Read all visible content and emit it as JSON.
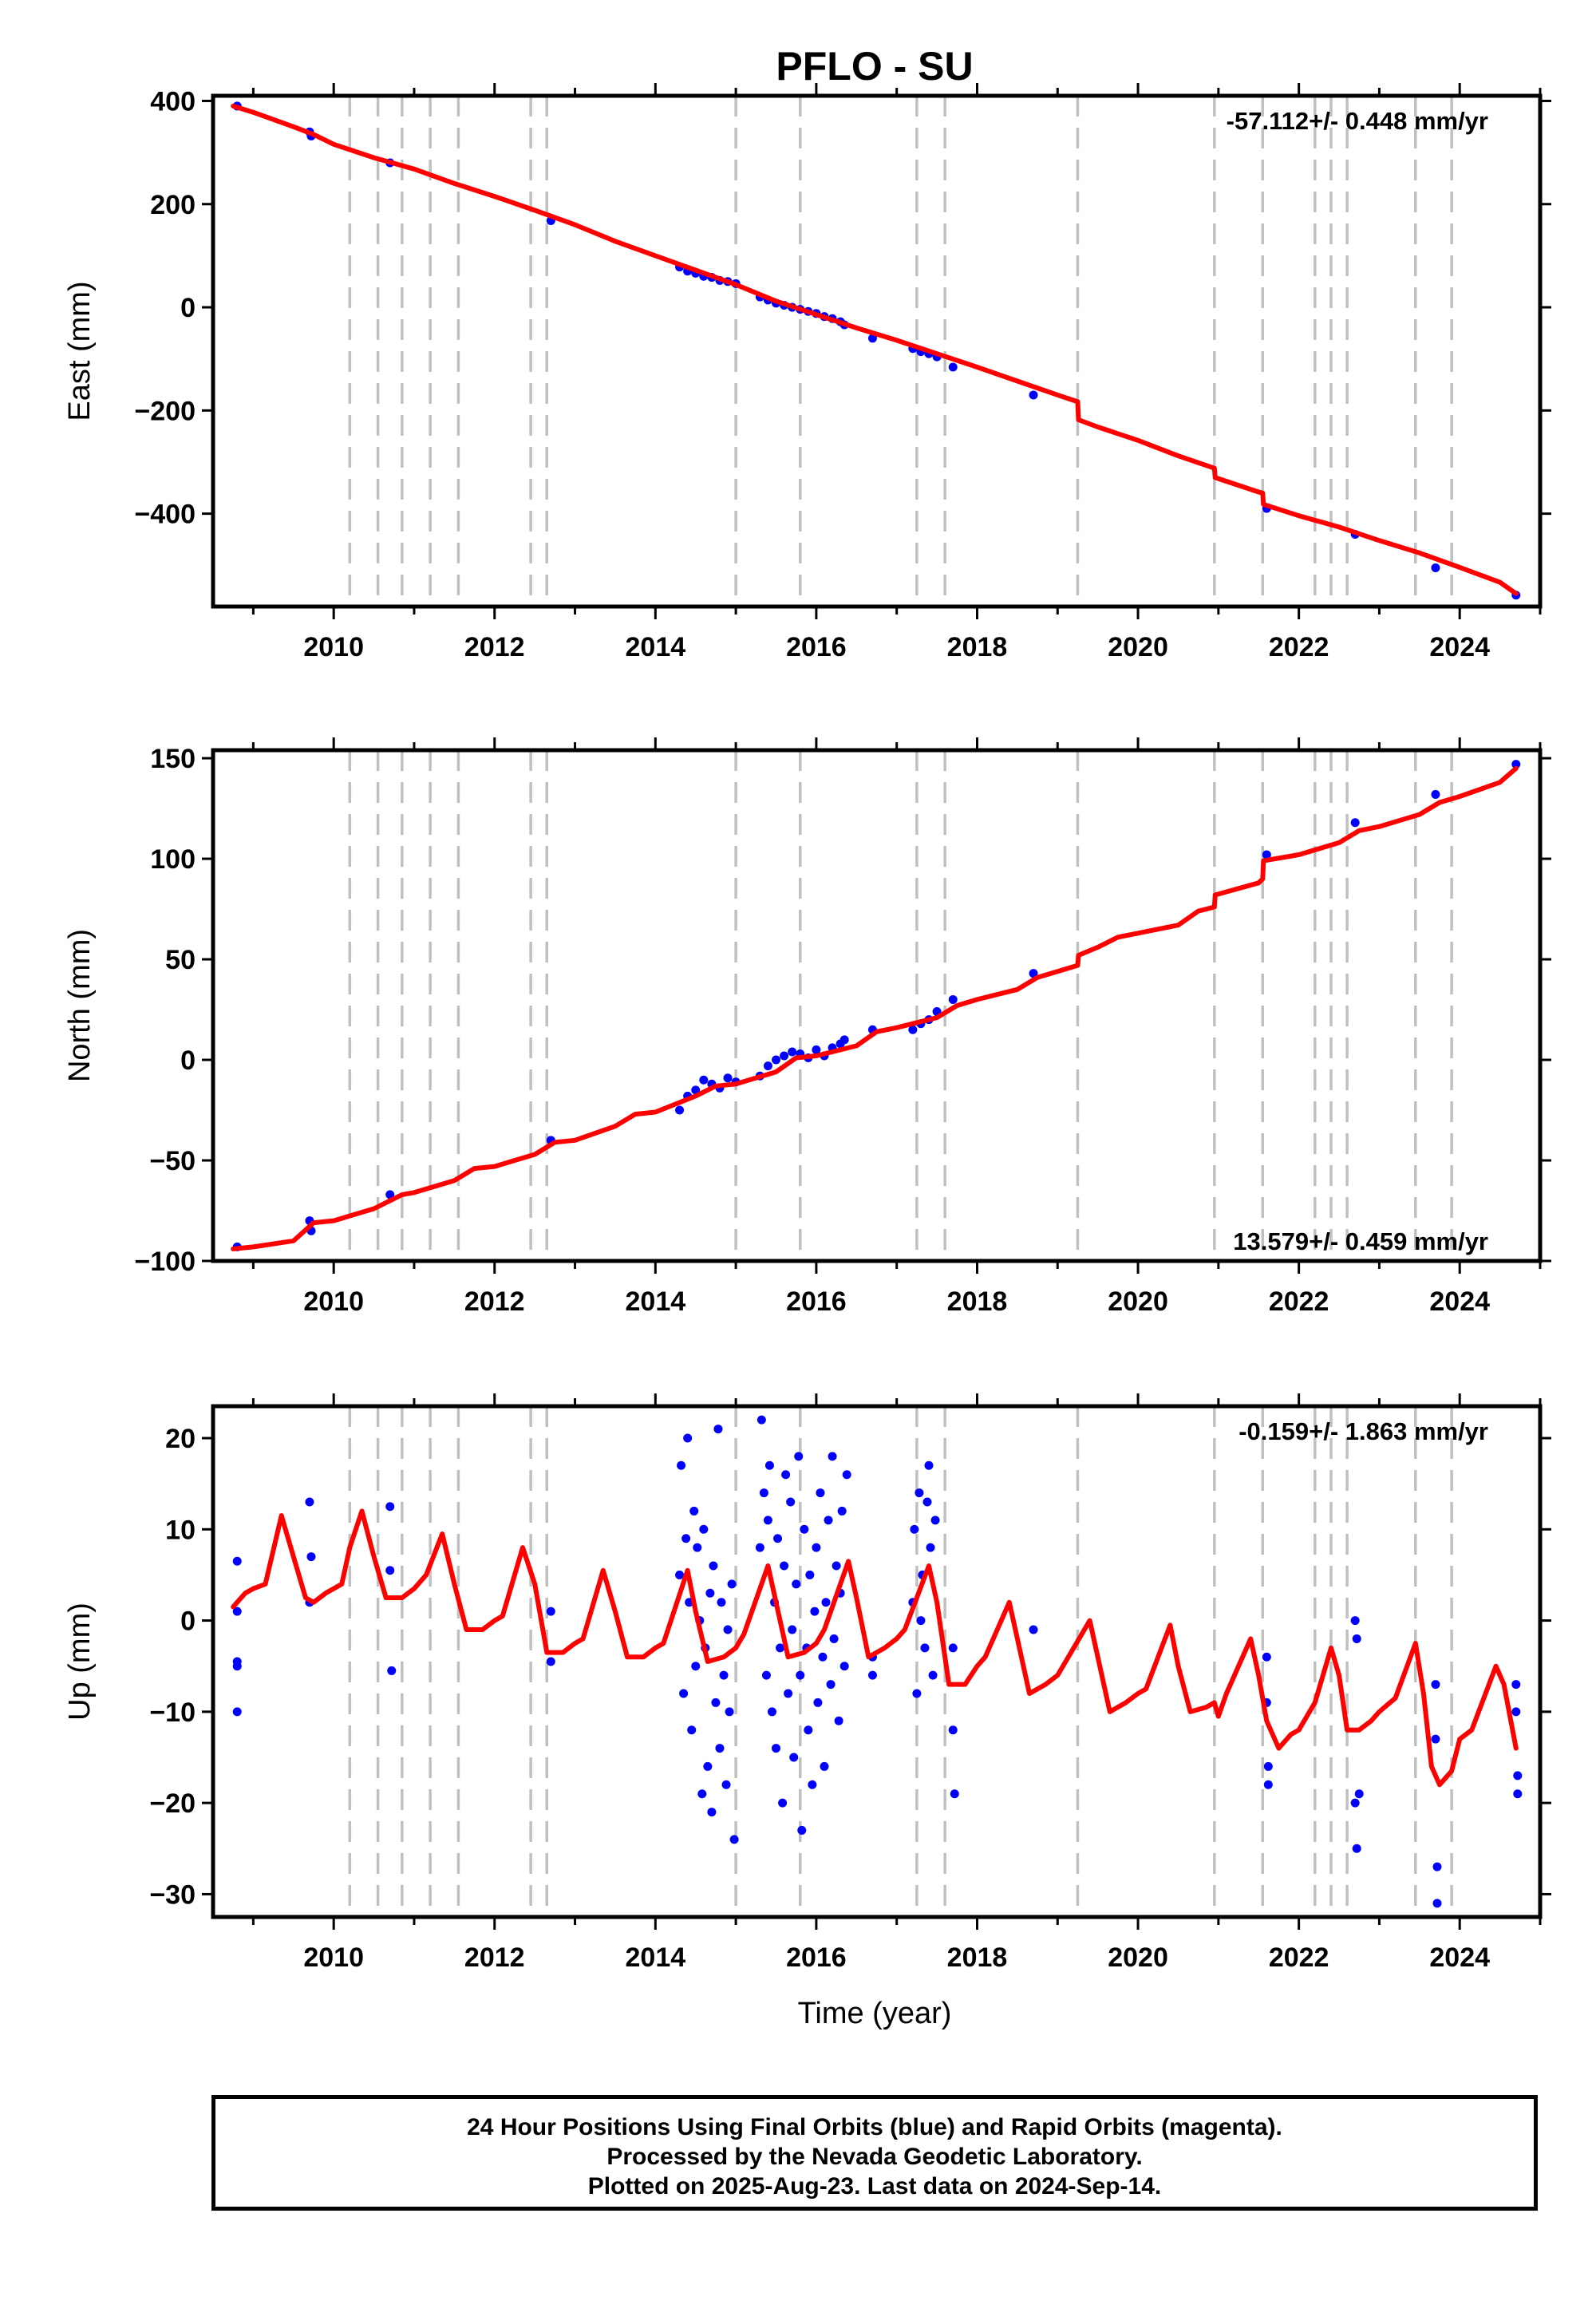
{
  "title": "PFLO - SU",
  "xlabel": "Time (year)",
  "footer": {
    "line1": "24 Hour Positions Using Final Orbits (blue) and Rapid Orbits (magenta).",
    "line2": "Processed by the Nevada Geodetic Laboratory.",
    "line3": "Plotted on 2025-Aug-23. Last data on 2024-Sep-14."
  },
  "colors": {
    "points": "#0000ff",
    "fit": "#ff0000",
    "breaks": "#c0c0c0",
    "axis": "#000000"
  },
  "chart_data": [
    {
      "type": "scatter",
      "ylabel": "East (mm)",
      "rate_label": "-57.112+/- 0.448 mm/yr",
      "xlim": [
        2008.5,
        2025.0
      ],
      "ylim": [
        -580,
        410
      ],
      "yticks": [
        400,
        200,
        0,
        -200,
        -400
      ],
      "xticks": [
        2010,
        2012,
        2014,
        2016,
        2018,
        2020,
        2022,
        2024
      ],
      "break_years": [
        2010.2,
        2010.55,
        2010.85,
        2011.2,
        2011.55,
        2012.45,
        2012.65,
        2015.0,
        2015.8,
        2017.25,
        2017.6,
        2019.25,
        2020.95,
        2021.55,
        2022.2,
        2022.4,
        2022.6,
        2023.45,
        2023.9
      ],
      "fit": {
        "x": [
          2008.75,
          2009.0,
          2009.5,
          2009.75,
          2010.0,
          2010.5,
          2011.0,
          2011.5,
          2012.0,
          2012.5,
          2013.0,
          2013.5,
          2014.0,
          2014.5,
          2015.0,
          2015.5,
          2016.0,
          2016.5,
          2017.0,
          2017.5,
          2018.0,
          2018.5,
          2019.0,
          2019.25,
          2019.26,
          2019.5,
          2020.0,
          2020.5,
          2020.95,
          2020.96,
          2021.5,
          2021.55,
          2021.56,
          2022.0,
          2022.5,
          2023.0,
          2023.5,
          2024.0,
          2024.5,
          2024.7
        ],
        "y": [
          390,
          378,
          350,
          335,
          316,
          290,
          268,
          240,
          215,
          188,
          160,
          128,
          100,
          72,
          44,
          12,
          -14,
          -40,
          -64,
          -90,
          -116,
          -143,
          -170,
          -183,
          -218,
          -232,
          -258,
          -288,
          -312,
          -330,
          -358,
          -360,
          -382,
          -404,
          -426,
          -452,
          -476,
          -504,
          -533,
          -555
        ]
      },
      "points": {
        "x": [
          2008.8,
          2009.7,
          2009.72,
          2010.7,
          2012.7,
          2014.3,
          2014.4,
          2014.5,
          2014.6,
          2014.7,
          2014.8,
          2014.9,
          2015.0,
          2015.3,
          2015.4,
          2015.5,
          2015.6,
          2015.7,
          2015.8,
          2015.9,
          2016.0,
          2016.1,
          2016.2,
          2016.3,
          2016.35,
          2016.7,
          2017.2,
          2017.3,
          2017.4,
          2017.5,
          2017.7,
          2018.7,
          2021.6,
          2022.7,
          2023.7,
          2024.7
        ],
        "y": [
          390,
          340,
          332,
          280,
          168,
          78,
          70,
          66,
          60,
          58,
          52,
          50,
          46,
          20,
          14,
          8,
          4,
          0,
          -4,
          -8,
          -12,
          -18,
          -22,
          -28,
          -34,
          -60,
          -80,
          -86,
          -90,
          -96,
          -116,
          -170,
          -390,
          -440,
          -505,
          -558
        ]
      }
    },
    {
      "type": "scatter",
      "ylabel": "North (mm)",
      "rate_label": "13.579+/- 0.459 mm/yr",
      "xlim": [
        2008.5,
        2025.0
      ],
      "ylim": [
        -100,
        154
      ],
      "yticks": [
        150,
        100,
        50,
        0,
        -50,
        -100
      ],
      "xticks": [
        2010,
        2012,
        2014,
        2016,
        2018,
        2020,
        2022,
        2024
      ],
      "break_years": [
        2010.2,
        2010.55,
        2010.85,
        2011.2,
        2011.55,
        2012.45,
        2012.65,
        2015.0,
        2015.8,
        2017.25,
        2017.6,
        2019.25,
        2020.95,
        2021.55,
        2022.2,
        2022.4,
        2022.6,
        2023.45,
        2023.9
      ],
      "fit": {
        "x": [
          2008.75,
          2009.0,
          2009.5,
          2009.75,
          2010.0,
          2010.5,
          2010.85,
          2011.0,
          2011.5,
          2011.75,
          2012.0,
          2012.5,
          2012.75,
          2013.0,
          2013.5,
          2013.75,
          2014.0,
          2014.5,
          2014.75,
          2015.0,
          2015.5,
          2015.75,
          2016.0,
          2016.5,
          2016.75,
          2017.0,
          2017.5,
          2017.75,
          2018.0,
          2018.5,
          2018.75,
          2019.0,
          2019.25,
          2019.26,
          2019.5,
          2019.75,
          2020.0,
          2020.5,
          2020.75,
          2020.95,
          2020.96,
          2021.5,
          2021.55,
          2021.56,
          2022.0,
          2022.5,
          2022.75,
          2023.0,
          2023.5,
          2023.75,
          2024.0,
          2024.5,
          2024.7
        ],
        "y": [
          -94,
          -93,
          -90,
          -81,
          -80,
          -74,
          -67,
          -66,
          -60,
          -54,
          -53,
          -47,
          -41,
          -40,
          -33,
          -27,
          -26,
          -18,
          -13,
          -12,
          -6,
          1,
          2,
          7,
          14,
          16,
          21,
          27,
          30,
          35,
          41,
          44,
          47,
          52,
          56,
          61,
          63,
          67,
          74,
          76,
          82,
          88,
          90,
          99,
          102,
          108,
          114,
          116,
          122,
          128,
          131,
          138,
          145
        ]
      },
      "points": {
        "x": [
          2008.8,
          2009.7,
          2009.72,
          2010.7,
          2012.7,
          2014.3,
          2014.4,
          2014.5,
          2014.6,
          2014.7,
          2014.8,
          2014.9,
          2015.0,
          2015.3,
          2015.4,
          2015.5,
          2015.6,
          2015.7,
          2015.8,
          2015.9,
          2016.0,
          2016.1,
          2016.2,
          2016.3,
          2016.35,
          2016.7,
          2017.2,
          2017.3,
          2017.4,
          2017.5,
          2017.7,
          2018.7,
          2021.6,
          2022.7,
          2023.7,
          2024.7
        ],
        "y": [
          -93,
          -80,
          -85,
          -67,
          -40,
          -25,
          -18,
          -15,
          -10,
          -12,
          -14,
          -9,
          -11,
          -8,
          -3,
          0,
          2,
          4,
          3,
          1,
          5,
          2,
          6,
          8,
          10,
          15,
          15,
          18,
          20,
          24,
          30,
          43,
          102,
          118,
          132,
          147
        ]
      }
    },
    {
      "type": "scatter",
      "ylabel": "Up (mm)",
      "rate_label": "-0.159+/- 1.863 mm/yr",
      "xlim": [
        2008.5,
        2025.0
      ],
      "ylim": [
        -32.5,
        23.5
      ],
      "yticks": [
        20,
        10,
        0,
        -10,
        -20,
        -30
      ],
      "xticks": [
        2010,
        2012,
        2014,
        2016,
        2018,
        2020,
        2022,
        2024
      ],
      "break_years": [
        2010.2,
        2010.55,
        2010.85,
        2011.2,
        2011.55,
        2012.45,
        2012.65,
        2015.0,
        2015.8,
        2017.25,
        2017.6,
        2019.25,
        2020.95,
        2021.55,
        2022.2,
        2022.4,
        2022.6,
        2023.45,
        2023.9
      ],
      "fit": {
        "x": [
          2008.75,
          2008.9,
          2009.0,
          2009.15,
          2009.35,
          2009.5,
          2009.65,
          2009.75,
          2009.9,
          2010.1,
          2010.2,
          2010.35,
          2010.5,
          2010.65,
          2010.85,
          2011.0,
          2011.15,
          2011.35,
          2011.5,
          2011.65,
          2011.85,
          2012.0,
          2012.1,
          2012.35,
          2012.5,
          2012.65,
          2012.85,
          2013.0,
          2013.1,
          2013.35,
          2013.5,
          2013.65,
          2013.85,
          2014.0,
          2014.1,
          2014.4,
          2014.5,
          2014.65,
          2014.85,
          2015.0,
          2015.1,
          2015.4,
          2015.5,
          2015.65,
          2015.85,
          2016.0,
          2016.1,
          2016.4,
          2016.5,
          2016.65,
          2016.85,
          2017.0,
          2017.1,
          2017.4,
          2017.5,
          2017.65,
          2017.85,
          2018.0,
          2018.1,
          2018.4,
          2018.5,
          2018.65,
          2018.85,
          2019.0,
          2019.1,
          2019.4,
          2019.5,
          2019.65,
          2019.85,
          2020.0,
          2020.1,
          2020.4,
          2020.5,
          2020.65,
          2020.85,
          2020.95,
          2021.0,
          2021.1,
          2021.4,
          2021.5,
          2021.6,
          2021.75,
          2021.9,
          2022.0,
          2022.2,
          2022.4,
          2022.5,
          2022.6,
          2022.75,
          2022.9,
          2023.0,
          2023.2,
          2023.45,
          2023.55,
          2023.65,
          2023.75,
          2023.9,
          2024.0,
          2024.15,
          2024.45,
          2024.55,
          2024.7
        ],
        "y": [
          1.5,
          3,
          3.5,
          4,
          11.5,
          7,
          2.5,
          2,
          3,
          4,
          8,
          12,
          7,
          2.5,
          2.5,
          3.5,
          5,
          9.5,
          4,
          -1,
          -1,
          0,
          0.5,
          8,
          4,
          -3.5,
          -3.5,
          -2.5,
          -2,
          5.5,
          1,
          -4,
          -4,
          -3,
          -2.5,
          5.5,
          1,
          -4.5,
          -4,
          -3,
          -1.5,
          6,
          2,
          -4,
          -3.5,
          -2.5,
          -1,
          6.5,
          2.5,
          -4,
          -3,
          -2,
          -1,
          6,
          2,
          -7,
          -7,
          -5,
          -4,
          2,
          -2,
          -8,
          -7,
          -6,
          -4.5,
          0,
          -4,
          -10,
          -9,
          -8,
          -7.5,
          -0.5,
          -5,
          -10,
          -9.5,
          -9,
          -10.5,
          -8,
          -2,
          -6,
          -11,
          -14,
          -12.5,
          -12,
          -9,
          -3,
          -6,
          -12,
          -12,
          -11,
          -10,
          -8.5,
          -2.5,
          -8,
          -16,
          -18,
          -16.5,
          -13,
          -12,
          -5,
          -7,
          -14
        ]
      },
      "points": {
        "x": [
          2008.8,
          2008.8,
          2008.8,
          2008.8,
          2008.8,
          2009.7,
          2009.7,
          2009.72,
          2010.7,
          2010.7,
          2010.72,
          2012.7,
          2012.7,
          2014.3,
          2014.32,
          2014.35,
          2014.38,
          2014.4,
          2014.42,
          2014.45,
          2014.48,
          2014.5,
          2014.52,
          2014.55,
          2014.58,
          2014.6,
          2014.62,
          2014.65,
          2014.68,
          2014.7,
          2014.72,
          2014.75,
          2014.78,
          2014.8,
          2014.82,
          2014.85,
          2014.88,
          2014.9,
          2014.92,
          2014.95,
          2014.98,
          2015.3,
          2015.32,
          2015.35,
          2015.38,
          2015.4,
          2015.42,
          2015.45,
          2015.48,
          2015.5,
          2015.52,
          2015.55,
          2015.58,
          2015.6,
          2015.62,
          2015.65,
          2015.68,
          2015.7,
          2015.72,
          2015.75,
          2015.78,
          2015.8,
          2015.82,
          2015.85,
          2015.88,
          2015.9,
          2015.92,
          2015.95,
          2015.98,
          2016.0,
          2016.02,
          2016.05,
          2016.08,
          2016.1,
          2016.12,
          2016.15,
          2016.18,
          2016.2,
          2016.22,
          2016.25,
          2016.28,
          2016.3,
          2016.32,
          2016.35,
          2016.38,
          2016.7,
          2016.7,
          2017.2,
          2017.22,
          2017.25,
          2017.28,
          2017.3,
          2017.32,
          2017.35,
          2017.38,
          2017.4,
          2017.42,
          2017.45,
          2017.48,
          2017.7,
          2017.7,
          2017.72,
          2018.7,
          2021.6,
          2021.6,
          2021.62,
          2021.62,
          2022.7,
          2022.7,
          2022.72,
          2022.72,
          2022.75,
          2023.7,
          2023.7,
          2023.72,
          2023.72,
          2024.7,
          2024.7,
          2024.72,
          2024.72
        ],
        "y": [
          6.5,
          -5,
          -10,
          1,
          -4.5,
          13,
          2,
          7,
          12.5,
          5.5,
          -5.5,
          -4.5,
          1,
          5,
          17,
          -8,
          9,
          20,
          2,
          -12,
          12,
          -5,
          8,
          0,
          -19,
          10,
          -3,
          -16,
          3,
          -21,
          6,
          -9,
          21,
          -14,
          2,
          -6,
          -18,
          -1,
          -10,
          4,
          -24,
          8,
          22,
          14,
          -6,
          11,
          17,
          -10,
          2,
          -14,
          9,
          -3,
          -20,
          6,
          16,
          -8,
          13,
          -1,
          -15,
          4,
          18,
          -6,
          -23,
          10,
          -3,
          -12,
          5,
          -18,
          1,
          8,
          -9,
          14,
          -4,
          -16,
          2,
          11,
          -7,
          18,
          -2,
          6,
          -11,
          3,
          12,
          -5,
          16,
          -4,
          -6,
          2,
          10,
          -8,
          14,
          0,
          5,
          -3,
          13,
          17,
          8,
          -6,
          11,
          -3,
          -12,
          -19,
          -1,
          -4,
          -9,
          -16,
          -18,
          0,
          -20,
          -25,
          -2,
          -19,
          -7,
          -13,
          -27,
          -31,
          -7,
          -10,
          -17,
          -19
        ]
      }
    }
  ]
}
